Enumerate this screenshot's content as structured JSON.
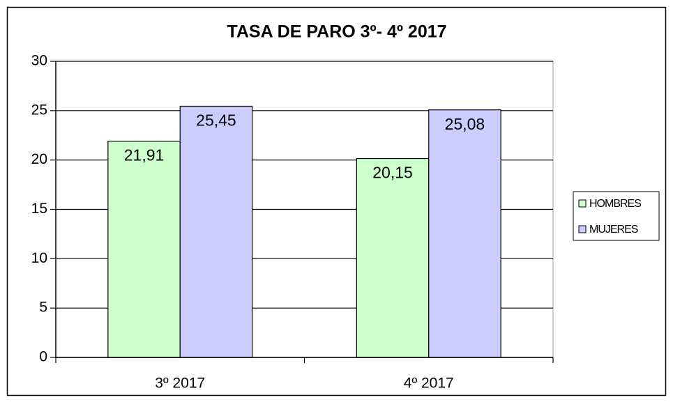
{
  "chart_data": {
    "type": "bar",
    "title": "TASA DE PARO 3º- 4º 2017",
    "categories": [
      "3º 2017",
      "4º 2017"
    ],
    "series": [
      {
        "name": "HOMBRES",
        "color": "#ccffcc",
        "values": [
          21.91,
          20.15
        ],
        "value_labels": [
          "21,91",
          "20,15"
        ]
      },
      {
        "name": "MUJERES",
        "color": "#ccccff",
        "values": [
          25.45,
          25.08
        ],
        "value_labels": [
          "25,45",
          "25,08"
        ]
      }
    ],
    "ylim": [
      0,
      30
    ],
    "yticks": [
      0,
      5,
      10,
      15,
      20,
      25,
      30
    ],
    "grid": true,
    "legend": "right"
  }
}
